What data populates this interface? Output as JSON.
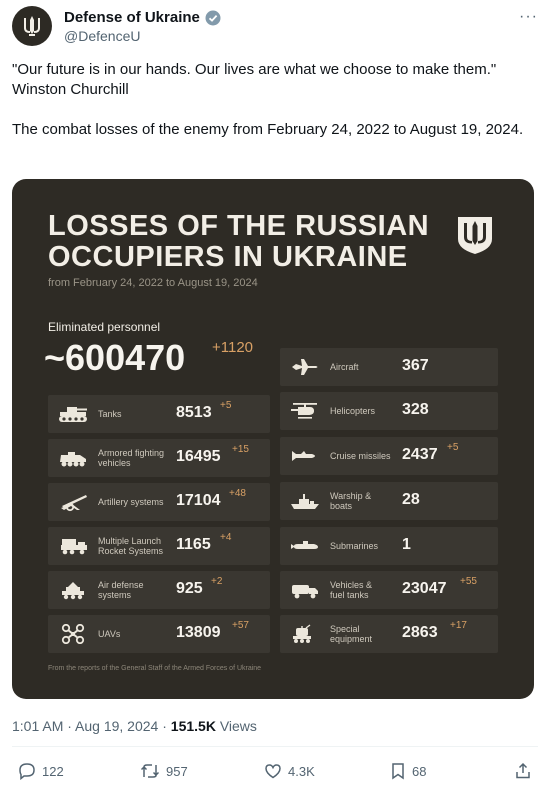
{
  "account": {
    "name": "Defense of Ukraine",
    "handle": "@DefenceU",
    "more": "···",
    "avatar_icon": "trident-icon",
    "verified_icon": "verified-badge-icon"
  },
  "tweet": {
    "text": "\"Our future is in our hands. Our lives are what we choose to make them.\"\nWinston Churchill\n\nThe combat losses of the enemy from February 24, 2022 to August 19, 2024."
  },
  "card": {
    "title_line1": "LOSSES OF THE RUSSIAN",
    "title_line2": "OCCUPIERS IN UKRAINE",
    "subtitle": "from February 24, 2022 to August 19, 2024",
    "personnel": {
      "label": "Eliminated personnel",
      "value": "~600470",
      "delta": "+1120"
    },
    "left": [
      {
        "label": "Tanks",
        "value": "8513",
        "delta": "+5",
        "icon": "tank-icon"
      },
      {
        "label": "Armored fighting vehicles",
        "value": "16495",
        "delta": "+15",
        "icon": "armored-vehicle-icon"
      },
      {
        "label": "Artillery systems",
        "value": "17104",
        "delta": "+48",
        "icon": "artillery-icon"
      },
      {
        "label": "Multiple Launch Rocket Systems",
        "value": "1165",
        "delta": "+4",
        "icon": "rocket-launcher-icon"
      },
      {
        "label": "Air defense systems",
        "value": "925",
        "delta": "+2",
        "icon": "air-defense-icon"
      },
      {
        "label": "UAVs",
        "value": "13809",
        "delta": "+57",
        "icon": "drone-icon"
      }
    ],
    "right": [
      {
        "label": "Aircraft",
        "value": "367",
        "delta": "",
        "icon": "aircraft-icon"
      },
      {
        "label": "Helicopters",
        "value": "328",
        "delta": "",
        "icon": "helicopter-icon"
      },
      {
        "label": "Cruise missiles",
        "value": "2437",
        "delta": "+5",
        "icon": "missile-icon"
      },
      {
        "label": "Warship & boats",
        "value": "28",
        "delta": "",
        "icon": "warship-icon"
      },
      {
        "label": "Submarines",
        "value": "1",
        "delta": "",
        "icon": "submarine-icon"
      },
      {
        "label": "Vehicles & fuel tanks",
        "value": "23047",
        "delta": "+55",
        "icon": "truck-icon"
      },
      {
        "label": "Special equipment",
        "value": "2863",
        "delta": "+17",
        "icon": "special-equipment-icon"
      }
    ],
    "footnote": "From the reports of the General Staff of the Armed Forces of Ukraine"
  },
  "meta": {
    "time": "1:01 AM · Aug 19, 2024 · ",
    "views": "151.5K",
    "views_label": " Views"
  },
  "actions": {
    "replies": "122",
    "reposts": "957",
    "likes": "4.3K",
    "bookmarks": "68"
  },
  "colors": {
    "card_bg": "#2e2b25",
    "row_bg": "#3a3731",
    "accent": "#d8a065",
    "verified": "#829aab"
  }
}
